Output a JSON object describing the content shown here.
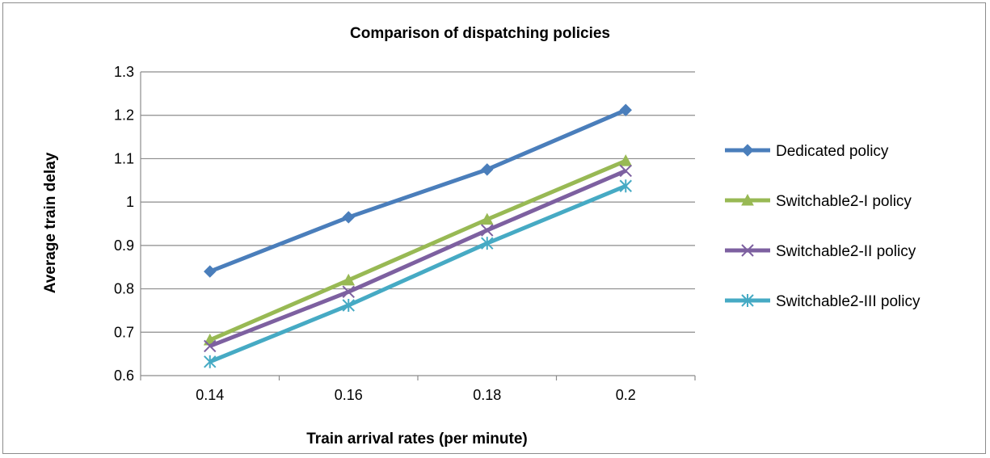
{
  "chart_data": {
    "type": "line",
    "title": "Comparison of dispatching policies",
    "xlabel": "Train arrival rates (per minute)",
    "ylabel": "Average train delay",
    "categories": [
      "0.14",
      "0.16",
      "0.18",
      "0.2"
    ],
    "ylim": [
      0.6,
      1.3
    ],
    "yticks": [
      "0.6",
      "0.7",
      "0.8",
      "0.9",
      "1",
      "1.1",
      "1.2",
      "1.3"
    ],
    "grid": true,
    "legend_position": "right",
    "series": [
      {
        "name": "Dedicated policy",
        "values": [
          0.84,
          0.965,
          1.075,
          1.212
        ],
        "color": "#4a7ebb",
        "marker": "diamond"
      },
      {
        "name": "Switchable2-I policy",
        "values": [
          0.682,
          0.82,
          0.96,
          1.095
        ],
        "color": "#98b954",
        "marker": "triangle"
      },
      {
        "name": "Switchable2-II policy",
        "values": [
          0.668,
          0.793,
          0.935,
          1.072
        ],
        "color": "#7d60a0",
        "marker": "x"
      },
      {
        "name": "Switchable2-III policy",
        "values": [
          0.632,
          0.762,
          0.905,
          1.037
        ],
        "color": "#46aac4",
        "marker": "star"
      }
    ]
  }
}
